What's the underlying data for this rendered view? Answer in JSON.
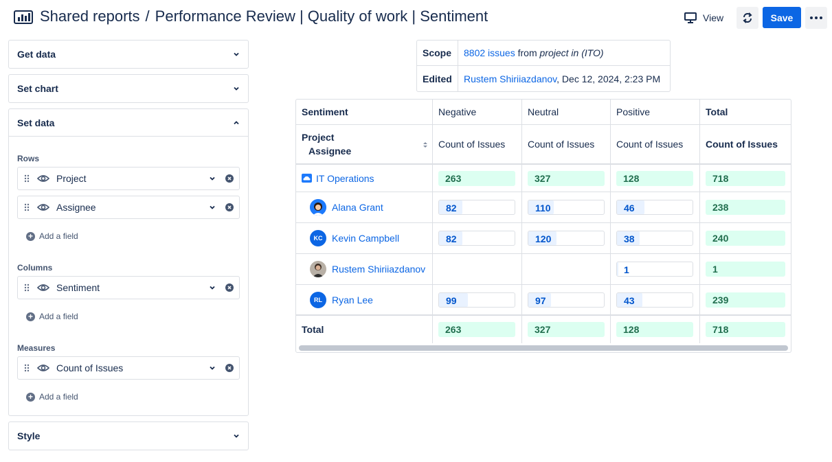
{
  "header": {
    "breadcrumb_root": "Shared reports",
    "separator": "/",
    "title": "Performance Review | Quality of work | Sentiment",
    "view_label": "View",
    "save_label": "Save"
  },
  "left_panel": {
    "get_data": "Get data",
    "set_chart": "Set chart",
    "set_data": "Set data",
    "rows_label": "Rows",
    "rows": [
      "Project",
      "Assignee"
    ],
    "columns_label": "Columns",
    "columns": [
      "Sentiment"
    ],
    "measures_label": "Measures",
    "measures": [
      "Count of Issues"
    ],
    "add_field": "Add a field",
    "style": "Style"
  },
  "scope": {
    "scope_key": "Scope",
    "issues_link": "8802 issues",
    "from_text": " from ",
    "query": "project in (ITO)",
    "edited_key": "Edited",
    "editor": "Rustem Shiriiazdanov",
    "edited_date": ", Dec 12, 2024, 2:23 PM"
  },
  "pivot": {
    "col_header": "Sentiment",
    "row_header_1": "Project",
    "row_header_2": "Assignee",
    "columns": [
      "Negative",
      "Neutral",
      "Positive",
      "Total"
    ],
    "measure": "Count of Issues",
    "project": {
      "name": "IT Operations",
      "values": [
        "263",
        "327",
        "128",
        "718"
      ]
    },
    "assignees": [
      {
        "name": "Alana Grant",
        "initials": "",
        "values": [
          "82",
          "110",
          "46",
          "238"
        ],
        "fractions": [
          0.31,
          0.34,
          0.36
        ]
      },
      {
        "name": "Kevin Campbell",
        "initials": "KC",
        "values": [
          "82",
          "120",
          "38",
          "240"
        ],
        "fractions": [
          0.31,
          0.37,
          0.3
        ]
      },
      {
        "name": "Rustem Shiriiazdanov",
        "initials": "",
        "values": [
          "",
          "",
          "1",
          "1"
        ],
        "fractions": [
          0,
          0,
          0.01
        ]
      },
      {
        "name": "Ryan Lee",
        "initials": "RL",
        "values": [
          "99",
          "97",
          "43",
          "239"
        ],
        "fractions": [
          0.38,
          0.3,
          0.34
        ]
      }
    ],
    "total_label": "Total",
    "totals": [
      "263",
      "327",
      "128",
      "718"
    ]
  },
  "colors": {
    "primary": "#0c66e4",
    "green_bg": "#dcfff1",
    "green_text": "#216e4e",
    "blue_fill": "#e9f2ff",
    "blue_text": "#0055cc"
  }
}
